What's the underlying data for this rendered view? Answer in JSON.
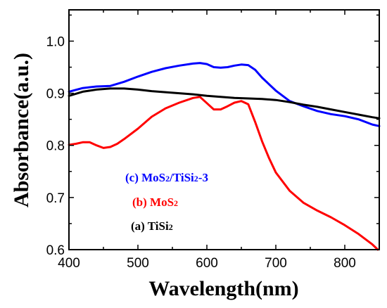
{
  "chart_data": {
    "type": "line",
    "title": "",
    "xlabel": "Wavelength(nm)",
    "ylabel": "Absorbance(a.u.)",
    "xlim": [
      400,
      850
    ],
    "ylim": [
      0.6,
      1.06
    ],
    "xticks": [
      400,
      500,
      600,
      700,
      800
    ],
    "yticks": [
      0.6,
      0.7,
      0.8,
      0.9,
      1.0
    ],
    "xtick_labels": [
      "400",
      "500",
      "600",
      "700",
      "800"
    ],
    "ytick_labels": [
      "0.6",
      "0.7",
      "0.8",
      "0.9",
      "1.0"
    ],
    "grid": false,
    "legend_position": "center-left",
    "series": [
      {
        "name": "(c) MoS2/TiSi2-3",
        "legend_main": "(c) MoS",
        "legend_sub1": "2",
        "legend_mid": "/TiSi",
        "legend_sub2": "2",
        "legend_tail": "-3",
        "color": "#0000ff",
        "x": [
          400,
          420,
          440,
          460,
          480,
          500,
          520,
          540,
          560,
          580,
          590,
          600,
          610,
          620,
          630,
          640,
          650,
          660,
          670,
          680,
          700,
          720,
          740,
          760,
          780,
          800,
          820,
          840,
          850
        ],
        "y": [
          0.903,
          0.91,
          0.913,
          0.914,
          0.922,
          0.932,
          0.941,
          0.948,
          0.953,
          0.957,
          0.958,
          0.956,
          0.95,
          0.949,
          0.95,
          0.953,
          0.955,
          0.954,
          0.945,
          0.93,
          0.905,
          0.885,
          0.875,
          0.866,
          0.86,
          0.856,
          0.85,
          0.84,
          0.837
        ]
      },
      {
        "name": "(b) MoS2",
        "legend_main": "(b) MoS",
        "legend_sub1": "2",
        "color": "#ff0000",
        "x": [
          400,
          410,
          420,
          430,
          440,
          450,
          460,
          470,
          480,
          500,
          520,
          540,
          560,
          580,
          590,
          600,
          610,
          620,
          630,
          640,
          650,
          660,
          670,
          680,
          690,
          700,
          720,
          740,
          760,
          780,
          800,
          820,
          840,
          848
        ],
        "y": [
          0.801,
          0.803,
          0.806,
          0.806,
          0.8,
          0.795,
          0.797,
          0.803,
          0.812,
          0.832,
          0.855,
          0.871,
          0.882,
          0.891,
          0.893,
          0.881,
          0.869,
          0.869,
          0.875,
          0.882,
          0.885,
          0.879,
          0.845,
          0.808,
          0.776,
          0.748,
          0.713,
          0.69,
          0.675,
          0.662,
          0.647,
          0.63,
          0.61,
          0.6
        ]
      },
      {
        "name": "(a) TiSi2",
        "legend_main": "(a) TiSi",
        "legend_sub1": "2",
        "color": "#000000",
        "x": [
          400,
          420,
          440,
          460,
          480,
          500,
          520,
          540,
          560,
          580,
          600,
          620,
          640,
          660,
          680,
          700,
          720,
          740,
          760,
          780,
          800,
          820,
          840,
          850
        ],
        "y": [
          0.895,
          0.903,
          0.907,
          0.909,
          0.909,
          0.907,
          0.904,
          0.902,
          0.9,
          0.898,
          0.895,
          0.893,
          0.891,
          0.89,
          0.889,
          0.887,
          0.883,
          0.878,
          0.874,
          0.869,
          0.864,
          0.859,
          0.854,
          0.852
        ]
      }
    ]
  }
}
